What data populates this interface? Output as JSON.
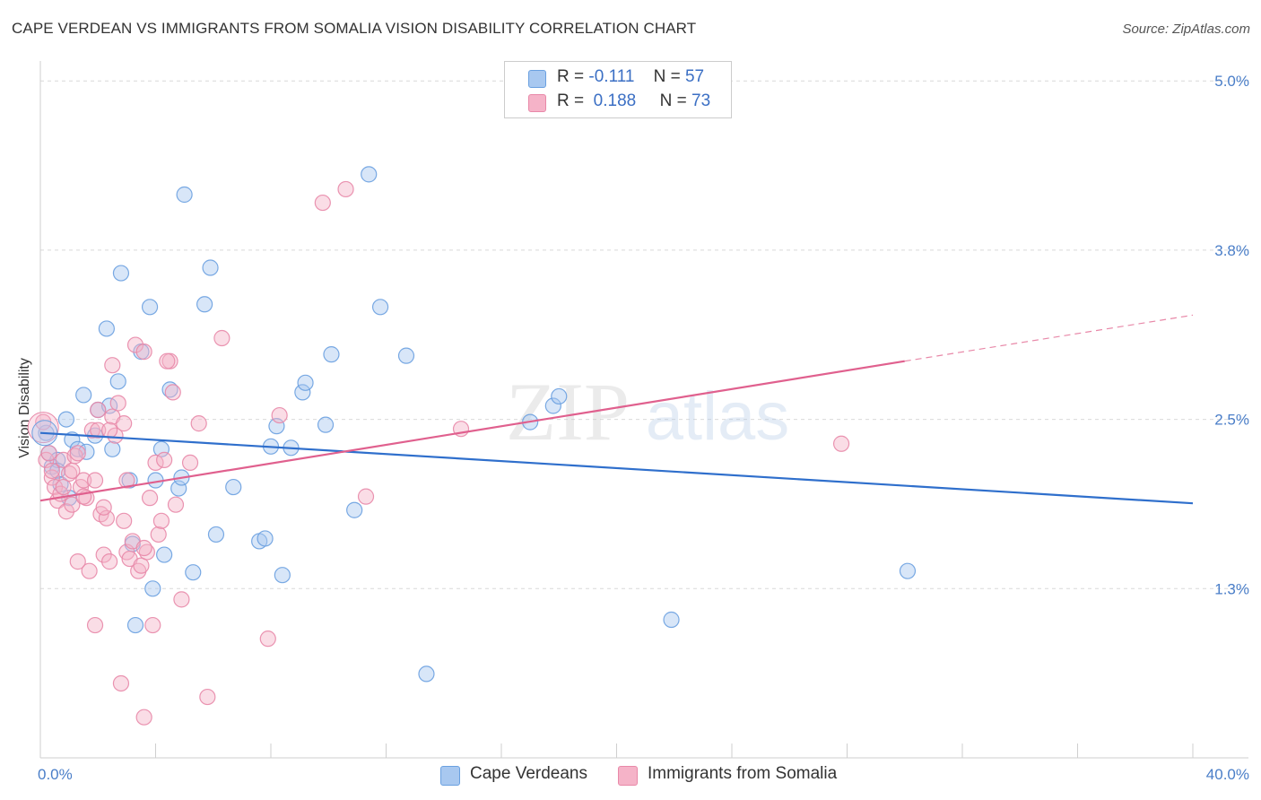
{
  "header": {
    "title": "CAPE VERDEAN VS IMMIGRANTS FROM SOMALIA VISION DISABILITY CORRELATION CHART",
    "source": "Source: ZipAtlas.com"
  },
  "legend": {
    "rows": [
      {
        "r_label": "R =",
        "r_value": "-0.111",
        "n_label": "N =",
        "n_value": "57",
        "color": "#a8c8f0"
      },
      {
        "r_label": "R =",
        "r_value": "0.188",
        "n_label": "N =",
        "n_value": "73",
        "color": "#f5b3c8"
      }
    ]
  },
  "bottom_legend": {
    "items": [
      {
        "label": "Cape Verdeans",
        "color": "#a8c8f0"
      },
      {
        "label": "Immigrants from Somalia",
        "color": "#f5b3c8"
      }
    ]
  },
  "watermark": {
    "zip": "ZIP",
    "atlas": "atlas"
  },
  "chart_data": {
    "type": "scatter",
    "title": "CAPE VERDEAN VS IMMIGRANTS FROM SOMALIA VISION DISABILITY CORRELATION CHART",
    "xlabel": "",
    "ylabel": "Vision Disability",
    "xlim": [
      0,
      40
    ],
    "ylim": [
      0,
      5.2
    ],
    "x_tick_labels": [
      "0.0%",
      "40.0%"
    ],
    "y_ticks": [
      1.25,
      2.5,
      3.75,
      5.0
    ],
    "y_tick_labels": [
      "1.3%",
      "2.5%",
      "3.8%",
      "5.0%"
    ],
    "grid": true,
    "series": [
      {
        "name": "Cape Verdeans",
        "color": "#6aa0e0",
        "fill": "#a8c8f0",
        "trend": {
          "x": [
            0,
            40
          ],
          "y": [
            2.4,
            1.88
          ]
        },
        "points": [
          [
            0.2,
            2.4
          ],
          [
            0.3,
            2.25
          ],
          [
            0.4,
            2.15
          ],
          [
            0.6,
            2.2
          ],
          [
            0.6,
            2.12
          ],
          [
            0.7,
            2.02
          ],
          [
            0.9,
            2.5
          ],
          [
            1.0,
            1.92
          ],
          [
            1.1,
            2.35
          ],
          [
            1.3,
            2.28
          ],
          [
            1.5,
            2.68
          ],
          [
            1.6,
            2.26
          ],
          [
            1.9,
            2.38
          ],
          [
            2.0,
            2.57
          ],
          [
            2.3,
            3.17
          ],
          [
            2.4,
            2.6
          ],
          [
            2.5,
            2.28
          ],
          [
            2.7,
            2.78
          ],
          [
            2.8,
            3.58
          ],
          [
            3.1,
            2.05
          ],
          [
            3.2,
            1.58
          ],
          [
            3.5,
            3.0
          ],
          [
            3.8,
            3.33
          ],
          [
            3.9,
            1.25
          ],
          [
            4.0,
            2.05
          ],
          [
            4.2,
            2.28
          ],
          [
            4.3,
            1.5
          ],
          [
            4.5,
            2.72
          ],
          [
            4.8,
            1.99
          ],
          [
            4.9,
            2.07
          ],
          [
            5.0,
            4.16
          ],
          [
            5.3,
            1.37
          ],
          [
            5.7,
            3.35
          ],
          [
            5.9,
            3.62
          ],
          [
            6.1,
            1.65
          ],
          [
            6.7,
            2.0
          ],
          [
            7.6,
            1.6
          ],
          [
            7.8,
            1.62
          ],
          [
            8.0,
            2.3
          ],
          [
            8.2,
            2.45
          ],
          [
            8.4,
            1.35
          ],
          [
            8.7,
            2.29
          ],
          [
            9.1,
            2.7
          ],
          [
            9.2,
            2.77
          ],
          [
            9.9,
            2.46
          ],
          [
            10.1,
            2.98
          ],
          [
            10.9,
            1.83
          ],
          [
            11.4,
            4.31
          ],
          [
            11.8,
            3.33
          ],
          [
            12.7,
            2.97
          ],
          [
            13.4,
            0.62
          ],
          [
            17.0,
            2.48
          ],
          [
            17.8,
            2.6
          ],
          [
            18.0,
            2.67
          ],
          [
            21.9,
            1.02
          ],
          [
            30.1,
            1.38
          ],
          [
            3.3,
            0.98
          ]
        ]
      },
      {
        "name": "Immigrants from Somalia",
        "color": "#e888a8",
        "fill": "#f5b3c8",
        "trend": {
          "x": [
            0,
            30
          ],
          "y": [
            1.9,
            2.93
          ]
        },
        "trend_extended": {
          "x": [
            30,
            40
          ],
          "y": [
            2.93,
            3.27
          ]
        },
        "points": [
          [
            0.1,
            2.48
          ],
          [
            0.2,
            2.2
          ],
          [
            0.3,
            2.25
          ],
          [
            0.4,
            2.07
          ],
          [
            0.5,
            2.0
          ],
          [
            0.6,
            1.9
          ],
          [
            0.7,
            1.95
          ],
          [
            0.8,
            2.2
          ],
          [
            0.9,
            1.82
          ],
          [
            1.0,
            2.1
          ],
          [
            1.1,
            2.12
          ],
          [
            1.2,
            2.23
          ],
          [
            1.3,
            1.45
          ],
          [
            1.4,
            2.0
          ],
          [
            1.5,
            2.05
          ],
          [
            1.6,
            1.92
          ],
          [
            1.7,
            1.38
          ],
          [
            1.8,
            2.42
          ],
          [
            1.9,
            0.98
          ],
          [
            2.0,
            2.42
          ],
          [
            2.1,
            1.8
          ],
          [
            2.2,
            1.5
          ],
          [
            2.3,
            1.77
          ],
          [
            2.4,
            1.45
          ],
          [
            2.5,
            2.52
          ],
          [
            2.6,
            2.38
          ],
          [
            2.7,
            2.62
          ],
          [
            2.8,
            0.55
          ],
          [
            2.9,
            2.47
          ],
          [
            3.0,
            1.52
          ],
          [
            3.1,
            1.47
          ],
          [
            3.2,
            1.6
          ],
          [
            3.3,
            3.05
          ],
          [
            3.4,
            1.38
          ],
          [
            3.5,
            1.42
          ],
          [
            3.6,
            3.0
          ],
          [
            3.7,
            1.52
          ],
          [
            3.8,
            1.92
          ],
          [
            3.9,
            0.98
          ],
          [
            4.0,
            2.18
          ],
          [
            4.1,
            1.65
          ],
          [
            4.2,
            1.75
          ],
          [
            4.3,
            2.2
          ],
          [
            4.5,
            2.93
          ],
          [
            4.6,
            2.7
          ],
          [
            4.7,
            1.87
          ],
          [
            4.9,
            1.17
          ],
          [
            5.2,
            2.18
          ],
          [
            5.5,
            2.47
          ],
          [
            5.8,
            0.45
          ],
          [
            6.3,
            3.1
          ],
          [
            7.9,
            0.88
          ],
          [
            8.3,
            2.53
          ],
          [
            9.8,
            4.1
          ],
          [
            10.6,
            4.2
          ],
          [
            11.3,
            1.93
          ],
          [
            14.6,
            2.43
          ],
          [
            27.8,
            2.32
          ],
          [
            3.6,
            0.3
          ],
          [
            2.5,
            2.9
          ],
          [
            1.3,
            2.25
          ],
          [
            0.8,
            2.0
          ],
          [
            1.1,
            1.87
          ],
          [
            2.2,
            1.85
          ],
          [
            2.4,
            2.42
          ],
          [
            3.0,
            2.05
          ],
          [
            4.4,
            2.93
          ],
          [
            2.0,
            2.57
          ],
          [
            1.5,
            1.93
          ],
          [
            0.4,
            2.12
          ],
          [
            2.9,
            1.75
          ],
          [
            3.6,
            1.55
          ],
          [
            1.9,
            2.05
          ]
        ]
      }
    ]
  }
}
